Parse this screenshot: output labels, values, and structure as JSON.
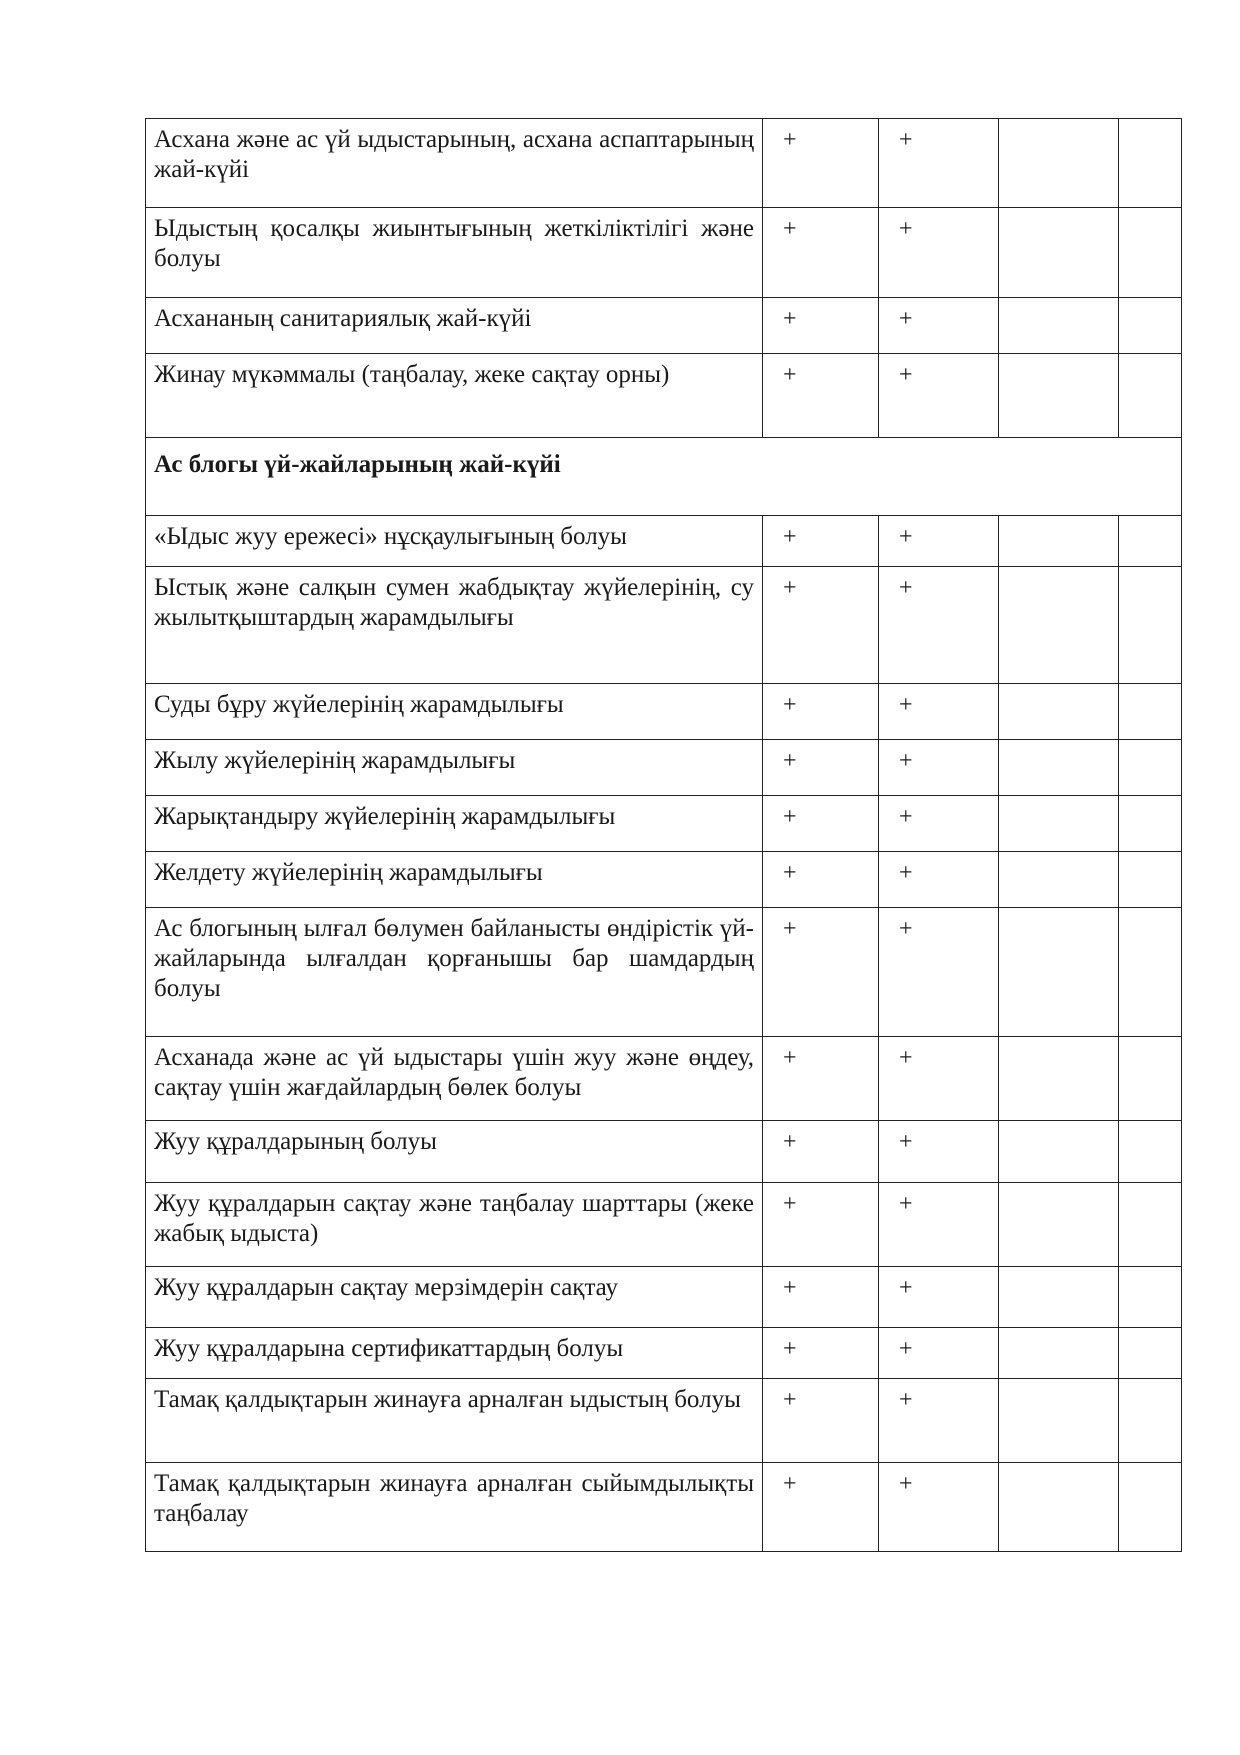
{
  "section_title": "Ас блогы үй-жайларының жай-күйі",
  "rows_before": [
    {
      "text": "Асхана және ас үй ыдыстарының, асхана аспаптарының жай-күйі",
      "col1": "+",
      "col2": "+",
      "col3": "",
      "col4": ""
    },
    {
      "text": "Ыдыстың қосалқы жиынтығының жеткіліктілігі және болуы",
      "col1": "+",
      "col2": "+",
      "col3": "",
      "col4": ""
    },
    {
      "text": "Асхананың санитариялық жай-күйі",
      "col1": "+",
      "col2": "+",
      "col3": "",
      "col4": ""
    },
    {
      "text": "Жинау мүкәммалы (таңбалау, жеке сақтау орны)",
      "col1": "+",
      "col2": "+",
      "col3": "",
      "col4": ""
    }
  ],
  "rows_after": [
    {
      "text": "«Ыдыс жуу ережесі» нұсқаулығының болуы",
      "col1": "+",
      "col2": "+",
      "col3": "",
      "col4": ""
    },
    {
      "text": "Ыстық және салқын сумен жабдықтау жүйелерінің, су жылытқыштардың жарамдылығы",
      "col1": "+",
      "col2": "+",
      "col3": "",
      "col4": ""
    },
    {
      "text": "Суды бұру жүйелерінің жарамдылығы",
      "col1": "+",
      "col2": "+",
      "col3": "",
      "col4": ""
    },
    {
      "text": "Жылу жүйелерінің жарамдылығы",
      "col1": "+",
      "col2": "+",
      "col3": "",
      "col4": ""
    },
    {
      "text": "Жарықтандыру жүйелерінің жарамдылығы",
      "col1": "+",
      "col2": "+",
      "col3": "",
      "col4": ""
    },
    {
      "text": "Желдету жүйелерінің жарамдылығы",
      "col1": "+",
      "col2": "+",
      "col3": "",
      "col4": ""
    },
    {
      "text": "Ас блогының ылғал бөлумен байланысты өндірістік үй-жайларында ылғалдан қорғанышы бар шамдардың болуы",
      "col1": "+",
      "col2": "+",
      "col3": "",
      "col4": ""
    },
    {
      "text": "Асханада және ас үй ыдыстары үшін жуу және өңдеу, сақтау үшін жағдайлардың бөлек болуы",
      "col1": "+",
      "col2": "+",
      "col3": "",
      "col4": ""
    },
    {
      "text": "Жуу құралдарының болуы",
      "col1": "+",
      "col2": "+",
      "col3": "",
      "col4": ""
    },
    {
      "text": "Жуу құралдарын сақтау және таңбалау шарттары (жеке жабық ыдыста)",
      "col1": "+",
      "col2": "+",
      "col3": "",
      "col4": ""
    },
    {
      "text": "Жуу құралдарын сақтау мерзімдерін сақтау",
      "col1": "+",
      "col2": "+",
      "col3": "",
      "col4": ""
    },
    {
      "text": "Жуу құралдарына сертификаттардың болуы",
      "col1": "+",
      "col2": "+",
      "col3": "",
      "col4": ""
    },
    {
      "text": "Тамақ қалдықтарын жинауға арналған ыдыстың болуы",
      "col1": "+",
      "col2": "+",
      "col3": "",
      "col4": ""
    },
    {
      "text": "Тамақ қалдықтарын жинауға арналған сыйымдылықты таңбалау",
      "col1": "+",
      "col2": "+",
      "col3": "",
      "col4": ""
    }
  ]
}
